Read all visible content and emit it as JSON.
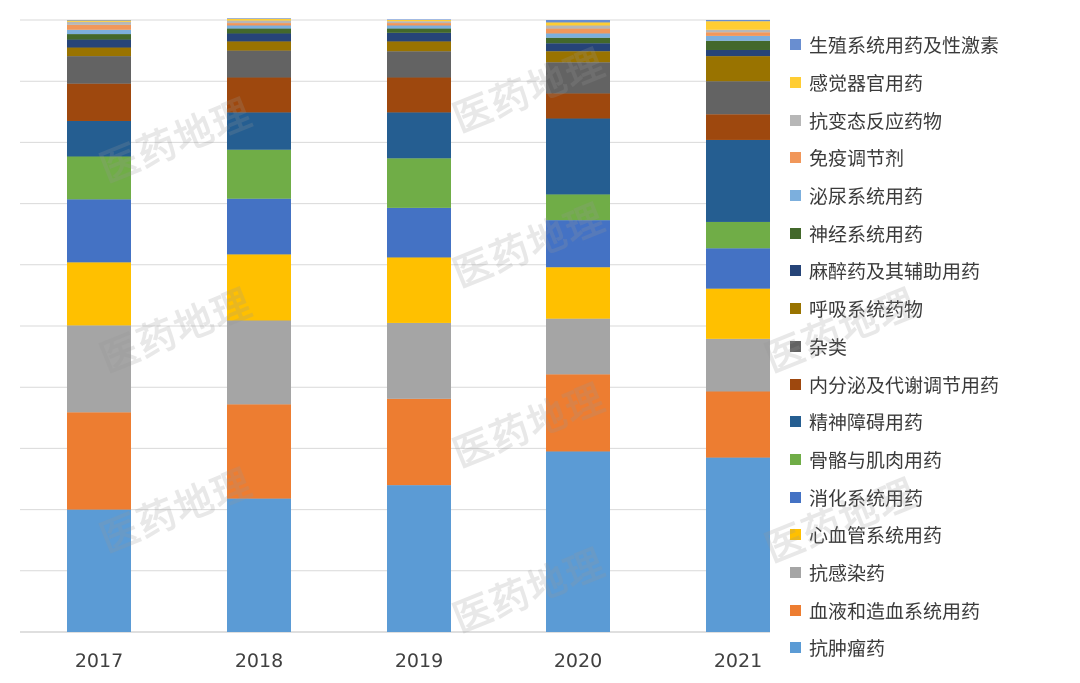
{
  "chart_data": {
    "type": "bar",
    "stacked": true,
    "percent_stacked": true,
    "categories": [
      "2017",
      "2018",
      "2019",
      "2020",
      "2021"
    ],
    "ylim": [
      0,
      100
    ],
    "grid": true,
    "legend_position": "right",
    "series": [
      {
        "name": "抗肿瘤药",
        "color": "#5B9BD5",
        "values": [
          20.0,
          21.8,
          24.0,
          29.5,
          28.5
        ]
      },
      {
        "name": "血液和造血系统用药",
        "color": "#ED7D31",
        "values": [
          15.9,
          15.4,
          14.1,
          12.6,
          10.8
        ]
      },
      {
        "name": "抗感染药",
        "color": "#A5A5A5",
        "values": [
          14.2,
          13.7,
          12.4,
          9.1,
          8.6
        ]
      },
      {
        "name": "心血管系统用药",
        "color": "#FFC000",
        "values": [
          10.3,
          10.8,
          10.7,
          8.4,
          8.2
        ]
      },
      {
        "name": "消化系统用药",
        "color": "#4472C4",
        "values": [
          10.3,
          9.1,
          8.1,
          7.7,
          6.6
        ]
      },
      {
        "name": "骨骼与肌肉用药",
        "color": "#70AD47",
        "values": [
          7.0,
          8.0,
          8.1,
          4.2,
          4.3
        ]
      },
      {
        "name": "精神障碍用药",
        "color": "#255E91",
        "values": [
          5.8,
          6.1,
          7.5,
          12.4,
          13.4
        ]
      },
      {
        "name": "内分泌及代谢调节用药",
        "color": "#9E480E",
        "values": [
          6.1,
          5.7,
          5.7,
          4.1,
          4.2
        ]
      },
      {
        "name": "杂类",
        "color": "#636363",
        "values": [
          4.5,
          4.4,
          4.3,
          5.1,
          5.4
        ]
      },
      {
        "name": "呼吸系统药物",
        "color": "#997300",
        "values": [
          1.4,
          1.5,
          1.6,
          1.8,
          4.1
        ]
      },
      {
        "name": "麻醉药及其辅助用药",
        "color": "#264478",
        "values": [
          1.3,
          1.3,
          1.4,
          1.3,
          1.0
        ]
      },
      {
        "name": "神经系统用药",
        "color": "#43682B",
        "values": [
          0.9,
          0.8,
          0.7,
          0.9,
          1.5
        ]
      },
      {
        "name": "泌尿系统用药",
        "color": "#7CAFDD",
        "values": [
          0.7,
          0.5,
          0.5,
          0.7,
          0.8
        ]
      },
      {
        "name": "免疫调节剂",
        "color": "#F1975A",
        "values": [
          0.8,
          0.4,
          0.4,
          0.8,
          0.6
        ]
      },
      {
        "name": "抗变态反应药物",
        "color": "#B7B7B7",
        "values": [
          0.5,
          0.4,
          0.3,
          0.5,
          0.4
        ]
      },
      {
        "name": "感觉器官用药",
        "color": "#FFCD33",
        "values": [
          0.2,
          0.3,
          0.2,
          0.5,
          1.4
        ]
      },
      {
        "name": "生殖系统用药及性激素",
        "color": "#698ED0",
        "values": [
          0.1,
          0.1,
          0.1,
          0.4,
          0.2
        ]
      }
    ]
  },
  "watermark": "医药地理"
}
